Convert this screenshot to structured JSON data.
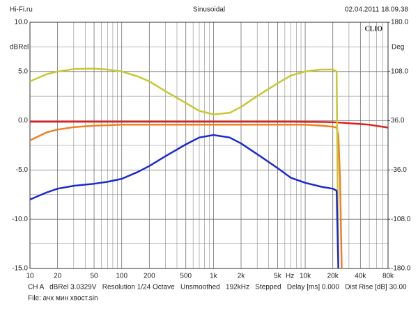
{
  "chart_data": {
    "type": "line",
    "header_left": "Hi-Fi.ru",
    "title": "Sinusoidal",
    "header_right": "02.04.2011 18.09.38",
    "brand": "CLIO",
    "ylabel": "dBRel",
    "y2label": "Deg",
    "xunit": "Hz",
    "footer": "CH A   dBRel 3.0329V   Resolution 1/24 Octave   Unsmoothed   192kHz   Stepped   Delay [ms] 0.000   Dist Rise [dB] 30.00",
    "file": "File: ачх мин хвост.sin",
    "xscale": "log",
    "grid": true,
    "xlim": [
      10,
      80000
    ],
    "xticks": [
      10,
      20,
      50,
      100,
      200,
      500,
      {
        "value": 1000,
        "label": "1k"
      },
      {
        "value": 2000,
        "label": "2k"
      },
      {
        "value": 5000,
        "label": "5k"
      },
      {
        "value": 10000,
        "label": "10k"
      },
      {
        "value": 20000,
        "label": "20k"
      },
      {
        "value": 40000,
        "label": "40k"
      },
      {
        "value": 80000,
        "label": "80k"
      }
    ],
    "xminor": [
      30,
      40,
      60,
      70,
      80,
      90,
      300,
      400,
      600,
      700,
      800,
      900,
      3000,
      4000,
      6000,
      7000,
      8000,
      9000,
      30000,
      50000,
      60000,
      70000
    ],
    "ylim": [
      -15,
      10
    ],
    "yticks": [
      {
        "value": 10,
        "label": "10.0"
      },
      {
        "value": 5,
        "label": "5.0"
      },
      {
        "value": 0,
        "label": "0.0"
      },
      {
        "value": -5,
        "label": "-5.0"
      },
      {
        "value": -10,
        "label": "-10.0"
      },
      {
        "value": -15,
        "label": "-15.0"
      }
    ],
    "yminor": [
      7.5,
      2.5,
      -2.5,
      -7.5,
      -12.5
    ],
    "y2lim": [
      -180,
      180
    ],
    "y2ticks": [
      {
        "value": 180,
        "label": "180.0"
      },
      {
        "value": 108,
        "label": "108.0"
      },
      {
        "value": 36,
        "label": "36.0"
      },
      {
        "value": -36,
        "label": "-36.0"
      },
      {
        "value": -108,
        "label": "-108.0"
      },
      {
        "value": -180,
        "label": "-180.0"
      }
    ],
    "x": [
      10,
      15,
      20,
      30,
      50,
      70,
      100,
      150,
      200,
      300,
      500,
      700,
      1000,
      1500,
      2000,
      3000,
      5000,
      7000,
      10000,
      15000,
      20000,
      22000,
      23000,
      24000,
      25000,
      30000,
      50000,
      80000
    ],
    "series": [
      {
        "color": "#e0201a",
        "values": [
          -0.1,
          -0.1,
          -0.1,
          -0.1,
          -0.1,
          -0.1,
          -0.1,
          -0.1,
          -0.1,
          -0.1,
          -0.1,
          -0.1,
          -0.1,
          -0.1,
          -0.1,
          -0.1,
          -0.1,
          -0.1,
          -0.12,
          -0.13,
          -0.15,
          -0.17,
          -0.18,
          -0.2,
          -0.2,
          -0.25,
          -0.4,
          -0.7
        ]
      },
      {
        "color": "#f08020",
        "values": [
          -2.0,
          -1.2,
          -0.9,
          -0.65,
          -0.5,
          -0.45,
          -0.4,
          -0.4,
          -0.4,
          -0.4,
          -0.4,
          -0.4,
          -0.4,
          -0.4,
          -0.4,
          -0.4,
          -0.4,
          -0.4,
          -0.4,
          -0.5,
          -0.6,
          -0.7,
          -1.5,
          -6,
          -15,
          null,
          null,
          null
        ]
      },
      {
        "color": "#c8c832",
        "values": [
          4.0,
          4.7,
          5.0,
          5.25,
          5.3,
          5.2,
          5.0,
          4.5,
          4.0,
          3.0,
          1.8,
          1.0,
          0.65,
          0.8,
          1.4,
          2.5,
          3.8,
          4.6,
          5.0,
          5.2,
          5.2,
          5.0,
          -15,
          null,
          null,
          null,
          null,
          null
        ]
      },
      {
        "color": "#1a2ad0",
        "values": [
          -8.0,
          -7.3,
          -6.9,
          -6.6,
          -6.4,
          -6.2,
          -5.9,
          -5.2,
          -4.6,
          -3.6,
          -2.4,
          -1.7,
          -1.45,
          -1.7,
          -2.3,
          -3.4,
          -4.8,
          -5.8,
          -6.3,
          -6.7,
          -6.9,
          -7.1,
          -15,
          null,
          null,
          null,
          null,
          null
        ]
      }
    ]
  }
}
